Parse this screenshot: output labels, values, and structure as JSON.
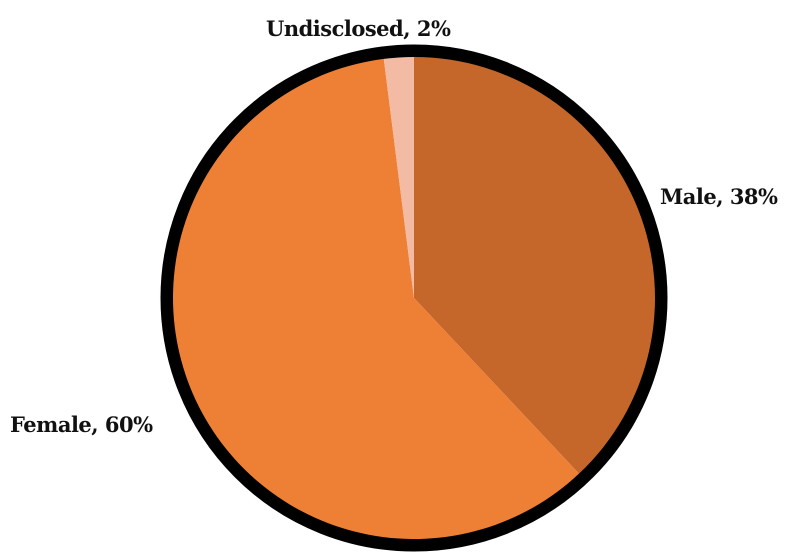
{
  "chart_data": {
    "type": "pie",
    "title": "",
    "start_angle_deg": 0,
    "direction": "clockwise",
    "slices": [
      {
        "label": "Male, 38%",
        "category": "Male",
        "value": 38,
        "color": "#c5672a"
      },
      {
        "label": "Female, 60%",
        "category": "Female",
        "value": 60,
        "color": "#ee8035"
      },
      {
        "label": "Undisclosed, 2%",
        "category": "Undisclosed",
        "value": 2,
        "color": "#f4bba4"
      }
    ],
    "border_color": "#000000",
    "legend": "none"
  }
}
